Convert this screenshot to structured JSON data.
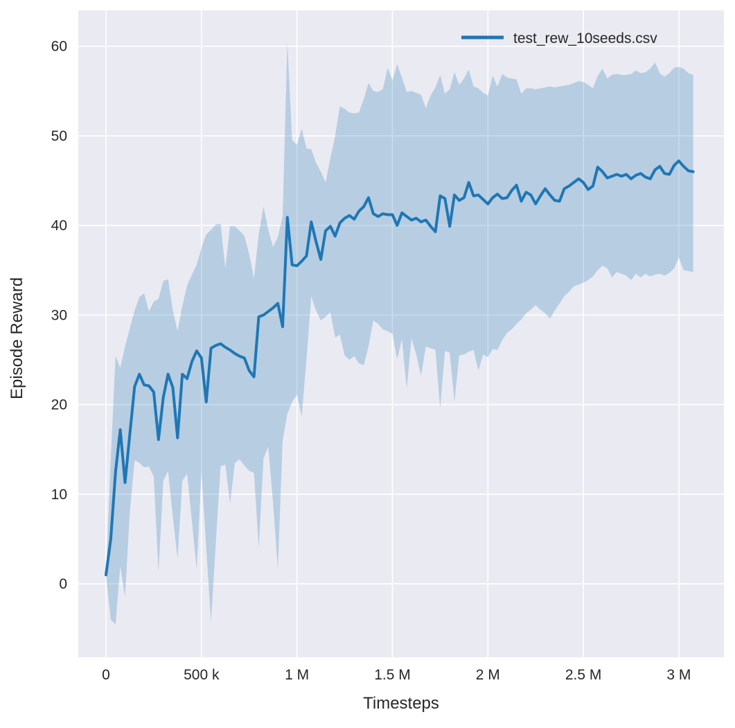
{
  "chart_data": {
    "type": "line",
    "title": "",
    "xlabel": "Timesteps",
    "ylabel": "Episode Reward",
    "legend_label": "test_rew_10seeds.csv",
    "legend_position": "upper right",
    "grid": true,
    "plot_background": "#eaeaf2",
    "grid_color": "#ffffff",
    "text_color": "#262626",
    "line_color": "#1f77b4",
    "band_color": "#1f77b4",
    "band_alpha": 0.25,
    "xlim": [
      -145000,
      3236000
    ],
    "ylim": [
      -8.2,
      64
    ],
    "x_ticks": {
      "values": [
        0,
        500000,
        1000000,
        1500000,
        2000000,
        2500000,
        3000000
      ],
      "labels": [
        "0",
        "500 k",
        "1 M",
        "1.5 M",
        "2 M",
        "2.5 M",
        "3 M"
      ]
    },
    "y_ticks": {
      "values": [
        0,
        10,
        20,
        30,
        40,
        50,
        60
      ],
      "labels": [
        "0",
        "10",
        "20",
        "30",
        "40",
        "50",
        "60"
      ]
    },
    "x": [
      0,
      25000,
      50000,
      75000,
      100000,
      125000,
      150000,
      175000,
      200000,
      225000,
      250000,
      275000,
      300000,
      325000,
      350000,
      375000,
      400000,
      425000,
      450000,
      475000,
      500000,
      525000,
      550000,
      575000,
      600000,
      625000,
      650000,
      675000,
      700000,
      725000,
      750000,
      775000,
      800000,
      825000,
      850000,
      875000,
      900000,
      925000,
      950000,
      975000,
      1000000,
      1025000,
      1050000,
      1075000,
      1100000,
      1125000,
      1150000,
      1175000,
      1200000,
      1225000,
      1250000,
      1275000,
      1300000,
      1325000,
      1350000,
      1375000,
      1400000,
      1425000,
      1450000,
      1475000,
      1500000,
      1525000,
      1550000,
      1575000,
      1600000,
      1625000,
      1650000,
      1675000,
      1700000,
      1725000,
      1750000,
      1775000,
      1800000,
      1825000,
      1850000,
      1875000,
      1900000,
      1925000,
      1950000,
      1975000,
      2000000,
      2025000,
      2050000,
      2075000,
      2100000,
      2125000,
      2150000,
      2175000,
      2200000,
      2225000,
      2250000,
      2275000,
      2300000,
      2325000,
      2350000,
      2375000,
      2400000,
      2425000,
      2450000,
      2475000,
      2500000,
      2525000,
      2550000,
      2575000,
      2600000,
      2625000,
      2650000,
      2675000,
      2700000,
      2725000,
      2750000,
      2775000,
      2800000,
      2825000,
      2850000,
      2875000,
      2900000,
      2925000,
      2950000,
      2975000,
      3000000,
      3025000,
      3050000,
      3075000
    ],
    "series": [
      {
        "name": "test_rew_10seeds.csv",
        "values": [
          1.0,
          5.0,
          12.5,
          17.2,
          11.3,
          16.7,
          22.0,
          23.4,
          22.2,
          22.1,
          21.4,
          16.1,
          20.8,
          23.4,
          21.9,
          16.3,
          23.4,
          22.9,
          24.8,
          26.0,
          25.2,
          20.3,
          26.3,
          26.6,
          26.8,
          26.4,
          26.1,
          25.7,
          25.4,
          25.2,
          23.8,
          23.1,
          29.8,
          30.0,
          30.4,
          30.8,
          31.3,
          28.7,
          40.9,
          35.6,
          35.5,
          36.0,
          36.6,
          40.4,
          38.2,
          36.2,
          39.4,
          39.9,
          38.8,
          40.3,
          40.8,
          41.1,
          40.7,
          41.6,
          42.1,
          43.1,
          41.3,
          41.0,
          41.3,
          41.2,
          41.2,
          40.0,
          41.4,
          41.0,
          40.6,
          40.8,
          40.4,
          40.6,
          39.9,
          39.3,
          43.3,
          43.0,
          39.9,
          43.4,
          42.8,
          43.1,
          44.8,
          43.3,
          43.4,
          42.9,
          42.4,
          43.1,
          43.5,
          43.0,
          43.1,
          43.9,
          44.5,
          42.7,
          43.7,
          43.4,
          42.4,
          43.3,
          44.1,
          43.4,
          42.8,
          42.7,
          44.1,
          44.4,
          44.8,
          45.2,
          44.8,
          44.0,
          44.4,
          46.5,
          46.0,
          45.3,
          45.5,
          45.7,
          45.5,
          45.7,
          45.2,
          45.6,
          45.8,
          45.4,
          45.2,
          46.2,
          46.6,
          45.8,
          45.7,
          46.7,
          47.2,
          46.6,
          46.1,
          46.0
        ]
      }
    ],
    "band": {
      "lower": [
        1.0,
        -4.0,
        -4.5,
        2.0,
        -1.5,
        8.0,
        13.8,
        13.5,
        13.0,
        13.1,
        12.0,
        1.3,
        11.5,
        12.6,
        7.5,
        2.8,
        11.5,
        12.3,
        7.0,
        1.6,
        12.5,
        4.0,
        -4.3,
        4.5,
        13.1,
        13.3,
        9.0,
        13.5,
        13.9,
        13.2,
        12.6,
        12.4,
        4.0,
        14.0,
        15.3,
        9.0,
        1.7,
        16.0,
        19.0,
        20.3,
        21.1,
        18.7,
        25.0,
        32.1,
        30.5,
        29.4,
        29.8,
        30.3,
        27.5,
        27.8,
        25.5,
        25.0,
        25.4,
        24.6,
        24.4,
        26.5,
        29.4,
        29.0,
        28.4,
        28.2,
        27.9,
        25.1,
        27.3,
        21.8,
        27.4,
        25.6,
        23.2,
        26.5,
        26.3,
        26.1,
        19.6,
        26.0,
        25.8,
        20.3,
        25.5,
        25.6,
        25.9,
        26.1,
        23.8,
        25.6,
        25.3,
        26.2,
        26.1,
        27.2,
        28.0,
        28.4,
        29.0,
        29.5,
        30.2,
        30.6,
        31.1,
        30.6,
        30.2,
        29.6,
        30.5,
        31.3,
        32.1,
        32.6,
        33.2,
        33.4,
        33.6,
        33.9,
        34.3,
        35.0,
        35.5,
        35.2,
        34.2,
        34.8,
        34.6,
        34.4,
        33.9,
        34.6,
        34.2,
        34.6,
        34.3,
        34.5,
        34.6,
        34.4,
        34.7,
        35.2,
        36.4,
        35.0,
        34.9,
        34.8
      ],
      "upper": [
        1.0,
        14.0,
        25.4,
        24.1,
        26.5,
        28.5,
        30.5,
        32.0,
        32.4,
        30.4,
        31.5,
        31.8,
        33.8,
        34.0,
        30.5,
        28.2,
        31.0,
        33.3,
        34.5,
        35.6,
        37.5,
        39.0,
        39.5,
        40.1,
        40.2,
        35.2,
        39.9,
        39.9,
        39.4,
        38.8,
        36.8,
        34.1,
        39.0,
        42.1,
        39.5,
        37.6,
        38.7,
        41.0,
        60.4,
        49.5,
        49.0,
        50.8,
        48.6,
        48.5,
        47.0,
        46.0,
        44.8,
        47.5,
        50.0,
        53.3,
        53.0,
        52.6,
        52.5,
        52.6,
        54.1,
        55.9,
        55.0,
        54.9,
        55.2,
        57.6,
        56.2,
        58.0,
        56.5,
        54.9,
        55.0,
        54.8,
        54.6,
        53.1,
        54.5,
        55.4,
        56.8,
        54.7,
        55.2,
        57.1,
        55.7,
        56.4,
        57.4,
        55.5,
        55.3,
        54.8,
        54.5,
        56.7,
        55.5,
        56.9,
        56.5,
        56.4,
        56.3,
        54.7,
        55.3,
        55.3,
        55.2,
        55.3,
        55.4,
        55.5,
        55.4,
        55.5,
        55.6,
        55.7,
        55.9,
        56.1,
        56.0,
        55.7,
        55.3,
        56.7,
        57.5,
        56.4,
        56.8,
        56.9,
        56.8,
        56.8,
        56.9,
        57.3,
        57.0,
        57.1,
        57.5,
        58.2,
        57.0,
        56.6,
        57.0,
        57.6,
        57.7,
        57.5,
        57.0,
        56.8
      ]
    }
  }
}
